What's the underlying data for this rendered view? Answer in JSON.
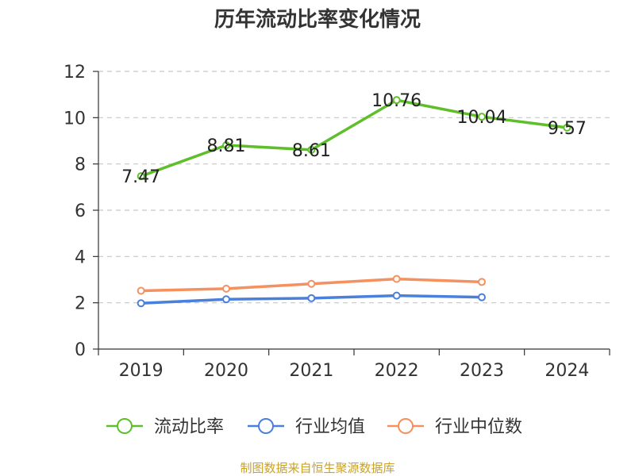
{
  "title": "历年流动比率变化情况",
  "source": "制图数据来自恒生聚源数据库",
  "chart_data": {
    "type": "line",
    "title": "历年流动比率变化情况",
    "xlabel": "",
    "ylabel": "",
    "categories": [
      "2019",
      "2020",
      "2021",
      "2022",
      "2023",
      "2024"
    ],
    "ylim": [
      0,
      12
    ],
    "yticks": [
      0,
      2,
      4,
      6,
      8,
      10,
      12
    ],
    "grid": true,
    "legend_position": "bottom",
    "series": [
      {
        "name": "流动比率",
        "color": "#5fbf2a",
        "values": [
          7.47,
          8.81,
          8.61,
          10.76,
          10.04,
          9.57
        ],
        "labels": [
          "7.47",
          "8.81",
          "8.61",
          "10.76",
          "10.04",
          "9.57"
        ]
      },
      {
        "name": "行业均值",
        "color": "#4a7fdc",
        "values": [
          1.98,
          2.15,
          2.2,
          2.31,
          2.24,
          null
        ]
      },
      {
        "name": "行业中位数",
        "color": "#f4915f",
        "values": [
          2.52,
          2.61,
          2.82,
          3.03,
          2.9,
          null
        ]
      }
    ]
  }
}
